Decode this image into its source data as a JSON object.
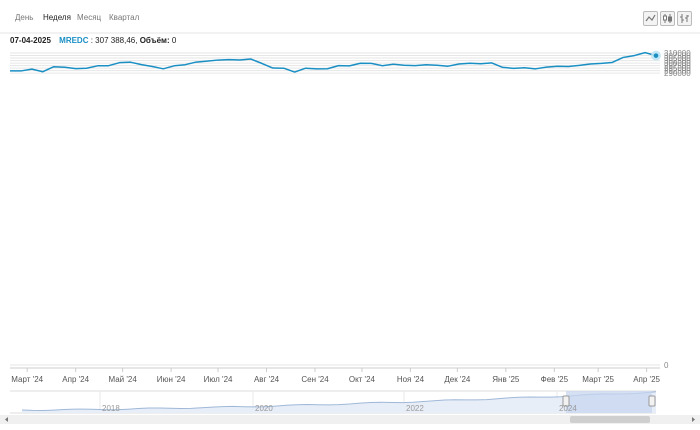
{
  "toolbar": {
    "tabs": [
      {
        "label": "День",
        "active": false
      },
      {
        "label": "Неделя",
        "active": true
      },
      {
        "label": "Месяц",
        "active": false
      },
      {
        "label": "Квартал",
        "active": false
      }
    ],
    "icons": [
      "line-chart-icon",
      "candlestick-icon",
      "ohlc-bars-icon"
    ]
  },
  "info": {
    "date": "07-04-2025",
    "ticker": "MREDC",
    "value_text": ": 307 388,46,",
    "volume_label": "Объём:",
    "volume_value": "0"
  },
  "colors": {
    "line": "#1a8fc4",
    "nav_fill": "#c7d6ef",
    "grid": "#e6e6e6"
  },
  "chart_data": {
    "type": "line",
    "title": "",
    "xlabel": "",
    "ylabel": "",
    "ylim": [
      -3000,
      313000
    ],
    "yticks": [
      0,
      290000,
      292500,
      295000,
      297500,
      300000,
      302500,
      305000,
      307500,
      310000
    ],
    "ytick_labels": [
      "0",
      "290000",
      "292500",
      "295000",
      "297500",
      "300000",
      "302500",
      "305000",
      "307500",
      "310000"
    ],
    "x_start": "2024-02-19",
    "x_end": "2025-04-07",
    "xtick_dates": [
      "2024-03-01",
      "2024-04-01",
      "2024-05-01",
      "2024-06-01",
      "2024-07-01",
      "2024-08-01",
      "2024-09-01",
      "2024-10-01",
      "2024-11-01",
      "2024-12-01",
      "2025-01-01",
      "2025-02-01",
      "2025-03-01",
      "2025-04-01"
    ],
    "xtick_labels": [
      "Март '24",
      "Апр '24",
      "Май '24",
      "Июн '24",
      "Июл '24",
      "Авг '24",
      "Сен '24",
      "Окт '24",
      "Ноя '24",
      "Дек '24",
      "Янв '25",
      "Фев '25",
      "Март '25",
      "Апр '25"
    ],
    "series": [
      {
        "x": [
          "2024-02-19",
          "2024-02-26",
          "2024-03-04",
          "2024-03-11",
          "2024-03-18",
          "2024-03-25",
          "2024-04-01",
          "2024-04-08",
          "2024-04-15",
          "2024-04-22",
          "2024-04-29",
          "2024-05-06",
          "2024-05-13",
          "2024-05-20",
          "2024-05-27",
          "2024-06-03",
          "2024-06-10",
          "2024-06-17",
          "2024-06-24",
          "2024-07-01",
          "2024-07-08",
          "2024-07-15",
          "2024-07-22",
          "2024-07-29",
          "2024-08-05",
          "2024-08-12",
          "2024-08-19",
          "2024-08-26",
          "2024-09-02",
          "2024-09-09",
          "2024-09-16",
          "2024-09-23",
          "2024-09-30",
          "2024-10-07",
          "2024-10-14",
          "2024-10-21",
          "2024-10-28",
          "2024-11-04",
          "2024-11-11",
          "2024-11-18",
          "2024-11-25",
          "2024-12-02",
          "2024-12-09",
          "2024-12-16",
          "2024-12-23",
          "2024-12-30",
          "2025-01-06",
          "2025-01-13",
          "2025-01-20",
          "2025-01-27",
          "2025-02-03",
          "2025-02-10",
          "2025-02-17",
          "2025-02-24",
          "2025-03-03",
          "2025-03-10",
          "2025-03-17",
          "2025-03-24",
          "2025-03-31",
          "2025-04-07"
        ],
        "values": [
          292200,
          292200,
          294000,
          291400,
          296400,
          295900,
          294500,
          294900,
          297300,
          297400,
          300400,
          300900,
          298500,
          296600,
          294300,
          297300,
          298400,
          301000,
          302000,
          303000,
          303400,
          303100,
          304000,
          299700,
          295100,
          294900,
          291100,
          294900,
          294200,
          294400,
          297500,
          297200,
          299800,
          299700,
          297400,
          298900,
          297800,
          297500,
          298400,
          297900,
          296900,
          299100,
          299800,
          299300,
          300200,
          295700,
          294800,
          295400,
          294300,
          296000,
          296800,
          296600,
          297700,
          299100,
          299700,
          300600,
          305600,
          307400,
          310400,
          307400
        ]
      }
    ],
    "navigator": {
      "xtick_labels": [
        "2018",
        "2020",
        "2022",
        "2024"
      ]
    }
  }
}
